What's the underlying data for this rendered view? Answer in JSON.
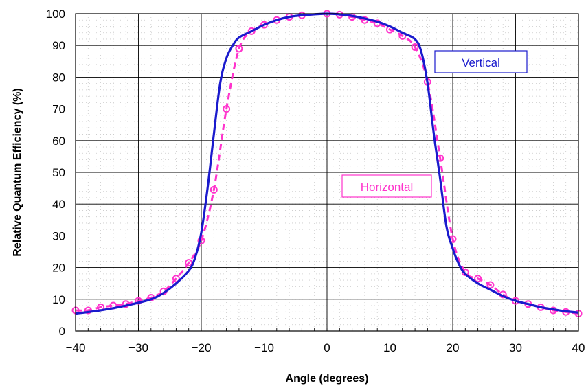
{
  "chart_data": {
    "type": "line",
    "title": "",
    "xlabel": "Angle (degrees)",
    "ylabel": "Relative Quantum Efficiency (%)",
    "xlim": [
      -40,
      40
    ],
    "ylim": [
      0,
      100
    ],
    "x_ticks": [
      "−40",
      "−30",
      "−20",
      "−10",
      "0",
      "10",
      "20",
      "30",
      "40"
    ],
    "y_ticks": [
      "0",
      "10",
      "20",
      "30",
      "40",
      "50",
      "60",
      "70",
      "80",
      "90",
      "100"
    ],
    "grid": true,
    "minor_grid": "dotted",
    "series": [
      {
        "name": "Vertical",
        "color": "#1a1acd",
        "style": "solid",
        "markers": false,
        "points": [
          [
            -40,
            5.5
          ],
          [
            -36,
            6.5
          ],
          [
            -32,
            8
          ],
          [
            -28,
            10
          ],
          [
            -26,
            12
          ],
          [
            -24,
            15
          ],
          [
            -22,
            19
          ],
          [
            -21,
            23
          ],
          [
            -20,
            31
          ],
          [
            -19,
            45
          ],
          [
            -18,
            62
          ],
          [
            -17,
            78
          ],
          [
            -16,
            86
          ],
          [
            -15,
            90
          ],
          [
            -14,
            92.5
          ],
          [
            -12,
            94.5
          ],
          [
            -10,
            96.5
          ],
          [
            -8,
            98
          ],
          [
            -6,
            99
          ],
          [
            -4,
            99.5
          ],
          [
            -2,
            99.8
          ],
          [
            0,
            100
          ],
          [
            2,
            99.8
          ],
          [
            4,
            99.3
          ],
          [
            6,
            98.5
          ],
          [
            8,
            97.5
          ],
          [
            10,
            96
          ],
          [
            12,
            94
          ],
          [
            14,
            92
          ],
          [
            15,
            88
          ],
          [
            16,
            78
          ],
          [
            17,
            62
          ],
          [
            18,
            48
          ],
          [
            19,
            33
          ],
          [
            20,
            26
          ],
          [
            21,
            21
          ],
          [
            22,
            18
          ],
          [
            24,
            15
          ],
          [
            26,
            13
          ],
          [
            28,
            11
          ],
          [
            30,
            9.5
          ],
          [
            32,
            8.5
          ],
          [
            34,
            7.5
          ],
          [
            36,
            6.8
          ],
          [
            38,
            6.2
          ],
          [
            40,
            5.8
          ]
        ]
      },
      {
        "name": "Horizontal",
        "color": "#ff33cc",
        "style": "dashed",
        "markers": true,
        "points": [
          [
            -40,
            6.5
          ],
          [
            -38,
            6.5
          ],
          [
            -36,
            7.5
          ],
          [
            -34,
            8
          ],
          [
            -32,
            8.5
          ],
          [
            -30,
            9.5
          ],
          [
            -28,
            10.5
          ],
          [
            -26,
            12.5
          ],
          [
            -24,
            16.5
          ],
          [
            -22,
            21.5
          ],
          [
            -20,
            28.5
          ],
          [
            -18,
            44.5
          ],
          [
            -16,
            70
          ],
          [
            -14,
            89
          ],
          [
            -12,
            94.5
          ],
          [
            -10,
            96.5
          ],
          [
            -8,
            98
          ],
          [
            -6,
            99
          ],
          [
            -4,
            99.5
          ],
          [
            0,
            100
          ],
          [
            2,
            99.7
          ],
          [
            4,
            99
          ],
          [
            6,
            98
          ],
          [
            8,
            97
          ],
          [
            10,
            95
          ],
          [
            12,
            93
          ],
          [
            14,
            89.5
          ],
          [
            16,
            78.5
          ],
          [
            18,
            54.5
          ],
          [
            20,
            29
          ],
          [
            22,
            18.5
          ],
          [
            24,
            16.5
          ],
          [
            26,
            14.5
          ],
          [
            28,
            11.5
          ],
          [
            30,
            9.5
          ],
          [
            32,
            8.5
          ],
          [
            34,
            7.5
          ],
          [
            36,
            6.5
          ],
          [
            38,
            6
          ],
          [
            40,
            5.5
          ]
        ]
      }
    ],
    "annotations": [
      "Vertical",
      "Horizontal"
    ]
  }
}
